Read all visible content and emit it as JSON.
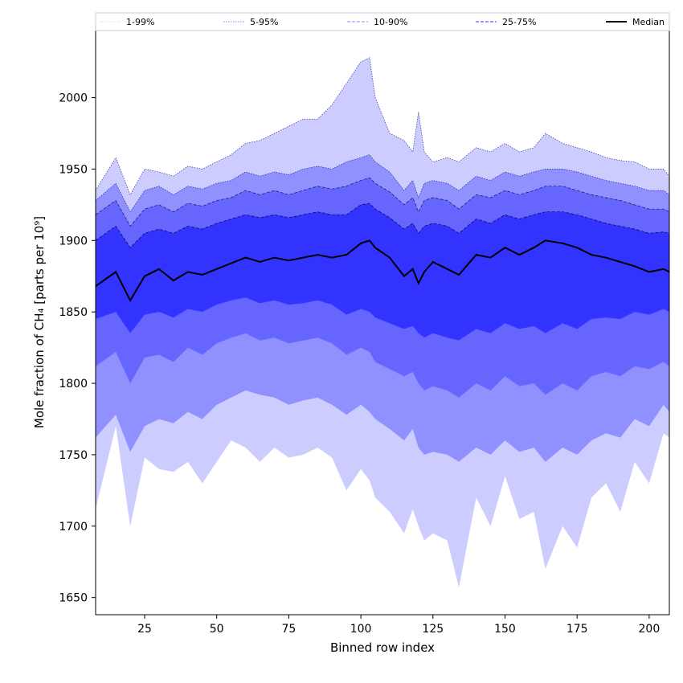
{
  "chart_data": {
    "type": "area",
    "title": "",
    "xlabel": "Binned row index",
    "ylabel": "Mole fraction of CH₄ [parts per 10⁹]",
    "xlim": [
      8,
      207
    ],
    "ylim": [
      1638,
      2047
    ],
    "xticks": [
      25,
      50,
      75,
      100,
      125,
      150,
      175,
      200
    ],
    "yticks": [
      1650,
      1700,
      1750,
      1800,
      1850,
      1900,
      1950,
      2000
    ],
    "legend_position": "top, spanning full width above plot",
    "legend": [
      {
        "label": "1-99%",
        "style": "dotted",
        "color": "#d8d8ff"
      },
      {
        "label": "5-95%",
        "style": "dotted",
        "color": "#8080ff"
      },
      {
        "label": "10-90%",
        "style": "dashed",
        "color": "#8888ff"
      },
      {
        "label": "25-75%",
        "style": "dashed",
        "color": "#3333ff"
      },
      {
        "label": "Median",
        "style": "solid",
        "color": "#000000"
      }
    ],
    "fill_colors": {
      "band_1_99": "#ccccff",
      "band_5_95": "#9090ff",
      "band_10_90": "#6666ff",
      "band_25_75": "#3333ff"
    },
    "x": [
      8,
      15,
      20,
      25,
      30,
      35,
      40,
      45,
      50,
      55,
      60,
      65,
      70,
      75,
      80,
      85,
      90,
      95,
      100,
      103,
      105,
      110,
      115,
      118,
      120,
      122,
      125,
      130,
      134,
      140,
      145,
      150,
      155,
      160,
      164,
      170,
      175,
      180,
      185,
      190,
      195,
      200,
      205,
      207
    ],
    "series": [
      {
        "name": "P01",
        "values": [
          1712,
          1770,
          1700,
          1748,
          1740,
          1738,
          1745,
          1730,
          1745,
          1760,
          1755,
          1745,
          1755,
          1748,
          1750,
          1755,
          1748,
          1725,
          1740,
          1732,
          1720,
          1710,
          1695,
          1712,
          1700,
          1690,
          1695,
          1690,
          1657,
          1720,
          1700,
          1735,
          1705,
          1710,
          1670,
          1700,
          1685,
          1720,
          1730,
          1710,
          1745,
          1730,
          1765,
          1762
        ]
      },
      {
        "name": "P05",
        "values": [
          1762,
          1778,
          1752,
          1770,
          1775,
          1772,
          1780,
          1775,
          1785,
          1790,
          1795,
          1792,
          1790,
          1785,
          1788,
          1790,
          1785,
          1778,
          1785,
          1780,
          1775,
          1768,
          1760,
          1768,
          1755,
          1750,
          1752,
          1750,
          1745,
          1755,
          1750,
          1760,
          1752,
          1755,
          1745,
          1755,
          1750,
          1760,
          1765,
          1762,
          1775,
          1770,
          1785,
          1780
        ]
      },
      {
        "name": "P10",
        "values": [
          1812,
          1822,
          1800,
          1818,
          1820,
          1815,
          1825,
          1820,
          1828,
          1832,
          1835,
          1830,
          1832,
          1828,
          1830,
          1832,
          1828,
          1820,
          1825,
          1822,
          1815,
          1810,
          1805,
          1808,
          1800,
          1795,
          1798,
          1795,
          1790,
          1800,
          1795,
          1805,
          1798,
          1800,
          1792,
          1800,
          1795,
          1805,
          1808,
          1805,
          1812,
          1810,
          1815,
          1812
        ]
      },
      {
        "name": "P25",
        "values": [
          1845,
          1850,
          1835,
          1848,
          1850,
          1846,
          1852,
          1850,
          1855,
          1858,
          1860,
          1856,
          1858,
          1855,
          1856,
          1858,
          1855,
          1848,
          1852,
          1850,
          1846,
          1842,
          1838,
          1840,
          1835,
          1832,
          1835,
          1832,
          1830,
          1838,
          1835,
          1842,
          1838,
          1840,
          1835,
          1842,
          1838,
          1845,
          1846,
          1845,
          1850,
          1848,
          1852,
          1850
        ]
      },
      {
        "name": "Median",
        "values": [
          1868,
          1878,
          1858,
          1875,
          1880,
          1872,
          1878,
          1876,
          1880,
          1884,
          1888,
          1885,
          1888,
          1886,
          1888,
          1890,
          1888,
          1890,
          1898,
          1900,
          1895,
          1888,
          1875,
          1880,
          1870,
          1878,
          1885,
          1880,
          1876,
          1890,
          1888,
          1895,
          1890,
          1895,
          1900,
          1898,
          1895,
          1890,
          1888,
          1885,
          1882,
          1878,
          1880,
          1878
        ]
      },
      {
        "name": "P75",
        "values": [
          1900,
          1910,
          1895,
          1905,
          1908,
          1905,
          1910,
          1908,
          1912,
          1915,
          1918,
          1916,
          1918,
          1916,
          1918,
          1920,
          1918,
          1918,
          1925,
          1926,
          1922,
          1916,
          1908,
          1912,
          1905,
          1910,
          1912,
          1910,
          1905,
          1915,
          1912,
          1918,
          1915,
          1918,
          1920,
          1920,
          1918,
          1915,
          1912,
          1910,
          1908,
          1905,
          1906,
          1905
        ]
      },
      {
        "name": "P90",
        "values": [
          1918,
          1928,
          1910,
          1922,
          1925,
          1920,
          1926,
          1924,
          1928,
          1930,
          1935,
          1932,
          1935,
          1932,
          1935,
          1938,
          1936,
          1938,
          1942,
          1944,
          1940,
          1934,
          1925,
          1930,
          1920,
          1928,
          1930,
          1928,
          1922,
          1932,
          1930,
          1935,
          1932,
          1935,
          1938,
          1938,
          1935,
          1932,
          1930,
          1928,
          1925,
          1922,
          1922,
          1920
        ]
      },
      {
        "name": "P95",
        "values": [
          1928,
          1940,
          1920,
          1935,
          1938,
          1932,
          1938,
          1936,
          1940,
          1942,
          1948,
          1945,
          1948,
          1946,
          1950,
          1952,
          1950,
          1955,
          1958,
          1960,
          1955,
          1948,
          1935,
          1942,
          1930,
          1940,
          1942,
          1940,
          1935,
          1945,
          1942,
          1948,
          1945,
          1948,
          1950,
          1950,
          1948,
          1945,
          1942,
          1940,
          1938,
          1935,
          1935,
          1932
        ]
      },
      {
        "name": "P99",
        "values": [
          1935,
          1958,
          1932,
          1950,
          1948,
          1945,
          1952,
          1950,
          1955,
          1960,
          1968,
          1970,
          1975,
          1980,
          1985,
          1985,
          1995,
          2010,
          2025,
          2028,
          2000,
          1975,
          1970,
          1962,
          1990,
          1962,
          1955,
          1958,
          1955,
          1965,
          1962,
          1968,
          1962,
          1965,
          1975,
          1968,
          1965,
          1962,
          1958,
          1956,
          1955,
          1950,
          1950,
          1945
        ]
      }
    ]
  }
}
